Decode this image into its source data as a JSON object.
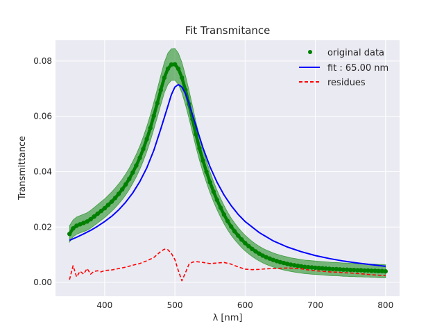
{
  "chart_data": {
    "type": "line",
    "title": "Fit Transmitance",
    "xlabel": "λ [nm]",
    "ylabel": "Transmittance",
    "xlim": [
      330,
      820
    ],
    "ylim": [
      -0.005,
      0.0875
    ],
    "xticks": [
      400,
      500,
      600,
      700,
      800
    ],
    "yticks": [
      0.0,
      0.02,
      0.04,
      0.06,
      0.08
    ],
    "xtick_labels": [
      "400",
      "500",
      "600",
      "700",
      "800"
    ],
    "ytick_labels": [
      "0.00",
      "0.02",
      "0.04",
      "0.06",
      "0.08"
    ],
    "grid": true,
    "legend_position": "top-right",
    "colors": {
      "background": "#eaeaf2",
      "grid": "#ffffff",
      "original": "#008000",
      "band": "#008000",
      "fit": "#0000ff",
      "residues": "#ff0000"
    },
    "series": [
      {
        "name": "original data",
        "style": "markers",
        "x": [
          350,
          355,
          360,
          365,
          370,
          375,
          380,
          385,
          390,
          395,
          400,
          405,
          410,
          415,
          420,
          425,
          430,
          435,
          440,
          445,
          450,
          455,
          460,
          465,
          470,
          475,
          480,
          485,
          490,
          495,
          500,
          505,
          510,
          515,
          520,
          525,
          530,
          535,
          540,
          545,
          550,
          555,
          560,
          565,
          570,
          575,
          580,
          585,
          590,
          595,
          600,
          605,
          610,
          615,
          620,
          625,
          630,
          635,
          640,
          645,
          650,
          655,
          660,
          665,
          670,
          675,
          680,
          685,
          690,
          695,
          700,
          705,
          710,
          715,
          720,
          725,
          730,
          735,
          740,
          745,
          750,
          755,
          760,
          765,
          770,
          775,
          780,
          785,
          790,
          795,
          800
        ],
        "y": [
          0.0175,
          0.0195,
          0.0205,
          0.021,
          0.0215,
          0.022,
          0.0228,
          0.0238,
          0.0248,
          0.0258,
          0.0268,
          0.028,
          0.0292,
          0.0305,
          0.032,
          0.0336,
          0.0354,
          0.0374,
          0.0397,
          0.0422,
          0.045,
          0.0482,
          0.0518,
          0.0558,
          0.0602,
          0.0648,
          0.0695,
          0.074,
          0.0772,
          0.0787,
          0.0788,
          0.0772,
          0.074,
          0.0695,
          0.0645,
          0.059,
          0.0535,
          0.0485,
          0.044,
          0.04,
          0.0362,
          0.0328,
          0.0298,
          0.027,
          0.0245,
          0.0222,
          0.0202,
          0.0185,
          0.0169,
          0.0155,
          0.0142,
          0.0131,
          0.0121,
          0.0112,
          0.0104,
          0.0097,
          0.0091,
          0.0086,
          0.0081,
          0.0077,
          0.0073,
          0.007,
          0.0067,
          0.0064,
          0.0062,
          0.006,
          0.0058,
          0.0056,
          0.0055,
          0.0054,
          0.0053,
          0.0052,
          0.0051,
          0.005,
          0.0049,
          0.0048,
          0.0048,
          0.0047,
          0.0046,
          0.0046,
          0.0045,
          0.0045,
          0.0044,
          0.0044,
          0.0043,
          0.0043,
          0.0042,
          0.0042,
          0.0041,
          0.0041,
          0.004
        ]
      },
      {
        "name": "fit : 65.00 nm",
        "style": "line",
        "x": [
          350,
          360,
          370,
          380,
          390,
          400,
          410,
          420,
          430,
          440,
          450,
          460,
          470,
          480,
          490,
          495,
          500,
          505,
          510,
          515,
          520,
          530,
          540,
          550,
          560,
          570,
          580,
          590,
          600,
          620,
          640,
          660,
          680,
          700,
          720,
          740,
          760,
          780,
          800
        ],
        "y": [
          0.0152,
          0.0163,
          0.0175,
          0.0188,
          0.0203,
          0.022,
          0.0239,
          0.0262,
          0.029,
          0.0323,
          0.0364,
          0.0414,
          0.0477,
          0.0555,
          0.0637,
          0.0678,
          0.0706,
          0.0715,
          0.0706,
          0.0682,
          0.0647,
          0.0566,
          0.0486,
          0.0418,
          0.0362,
          0.0316,
          0.0278,
          0.0246,
          0.022,
          0.018,
          0.015,
          0.0128,
          0.0111,
          0.0097,
          0.0086,
          0.0077,
          0.007,
          0.0064,
          0.0058
        ]
      },
      {
        "name": "residues",
        "style": "dashed",
        "x": [
          350,
          355,
          360,
          365,
          370,
          375,
          380,
          385,
          390,
          395,
          400,
          410,
          420,
          430,
          440,
          450,
          460,
          470,
          480,
          485,
          490,
          495,
          500,
          505,
          510,
          515,
          520,
          525,
          530,
          540,
          550,
          560,
          570,
          580,
          590,
          600,
          610,
          620,
          630,
          640,
          650,
          660,
          670,
          680,
          690,
          700,
          710,
          720,
          730,
          740,
          750,
          760,
          770,
          780,
          790,
          800
        ],
        "y": [
          0.001,
          0.006,
          0.002,
          0.004,
          0.003,
          0.005,
          0.003,
          0.004,
          0.0042,
          0.0038,
          0.0043,
          0.0045,
          0.005,
          0.0055,
          0.0062,
          0.0068,
          0.0078,
          0.009,
          0.0112,
          0.012,
          0.0118,
          0.0105,
          0.0082,
          0.0042,
          0.0006,
          0.0035,
          0.0065,
          0.0073,
          0.0075,
          0.0072,
          0.0068,
          0.007,
          0.0072,
          0.0066,
          0.0056,
          0.0048,
          0.0046,
          0.0047,
          0.0049,
          0.005,
          0.0051,
          0.0052,
          0.0051,
          0.0049,
          0.0045,
          0.0042,
          0.004,
          0.0038,
          0.0037,
          0.0035,
          0.0034,
          0.0032,
          0.003,
          0.0028,
          0.0026,
          0.0025
        ]
      }
    ]
  }
}
